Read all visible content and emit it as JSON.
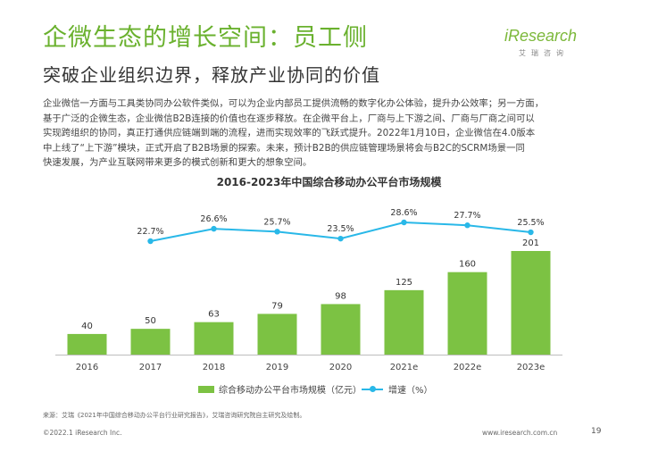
{
  "header": {
    "title": "企微生态的增长空间：员工侧",
    "subtitle": "突破企业组织边界，释放产业协同的价值",
    "logo_text": "iResearch",
    "logo_sub": "艾瑞咨询"
  },
  "body": {
    "lines": [
      "企业微信一方面与工具类协同办公软件类似，可以为企业内部员工提供流畅的数字化办公体验，提升办公效率；另一方面，",
      "基于广泛的企微生态，企业微信B2B连接的价值也在逐步释放。在企微平台上，厂商与上下游之间、厂商与厂商之间可以",
      "实现跨组织的协同，真正打通供应链端到端的流程，进而实现效率的飞跃式提升。2022年1月10日，企业微信在4.0版本",
      "中上线了“上下游”模块，正式开启了B2B场景的探索。未来，预计B2B的供应链管理场景将会与B2C的SCRM场景一同",
      "快速发展，为产业互联网带来更多的模式创新和更大的想象空间。"
    ]
  },
  "chart_data": {
    "type": "bar",
    "title": "2016-2023年中国综合移动办公平台市场规模",
    "categories": [
      "2016",
      "2017",
      "2018",
      "2019",
      "2020",
      "2021e",
      "2022e",
      "2023e"
    ],
    "series": [
      {
        "name": "综合移动办公平台市场规模（亿元）",
        "type": "bar",
        "values": [
          40,
          50,
          63,
          79,
          98,
          125,
          160,
          201
        ],
        "labels": [
          "40",
          "50",
          "63",
          "79",
          "98",
          "125",
          "160",
          "201"
        ]
      },
      {
        "name": "增速（%）",
        "type": "line",
        "values": [
          null,
          22.7,
          26.6,
          25.7,
          23.5,
          28.6,
          27.7,
          25.5
        ],
        "labels": [
          "",
          "22.7%",
          "26.6%",
          "25.7%",
          "23.5%",
          "28.6%",
          "27.7%",
          "25.5%"
        ]
      }
    ],
    "bar_color": "#7cc243",
    "line_color": "#29b8e8",
    "xlabel": "",
    "ylabel": "",
    "legend_position": "bottom"
  },
  "footer": {
    "source": "来源：艾瑞《2021年中国综合移动办公平台行业研究报告》，艾瑞咨询研究院自主研究及绘制。",
    "copyright": "©2022.1 iResearch Inc.",
    "url": "www.iresearch.com.cn",
    "page": "19"
  },
  "colors": {
    "accent": "#6ab12e",
    "bar": "#7cc243",
    "line": "#29b8e8"
  }
}
